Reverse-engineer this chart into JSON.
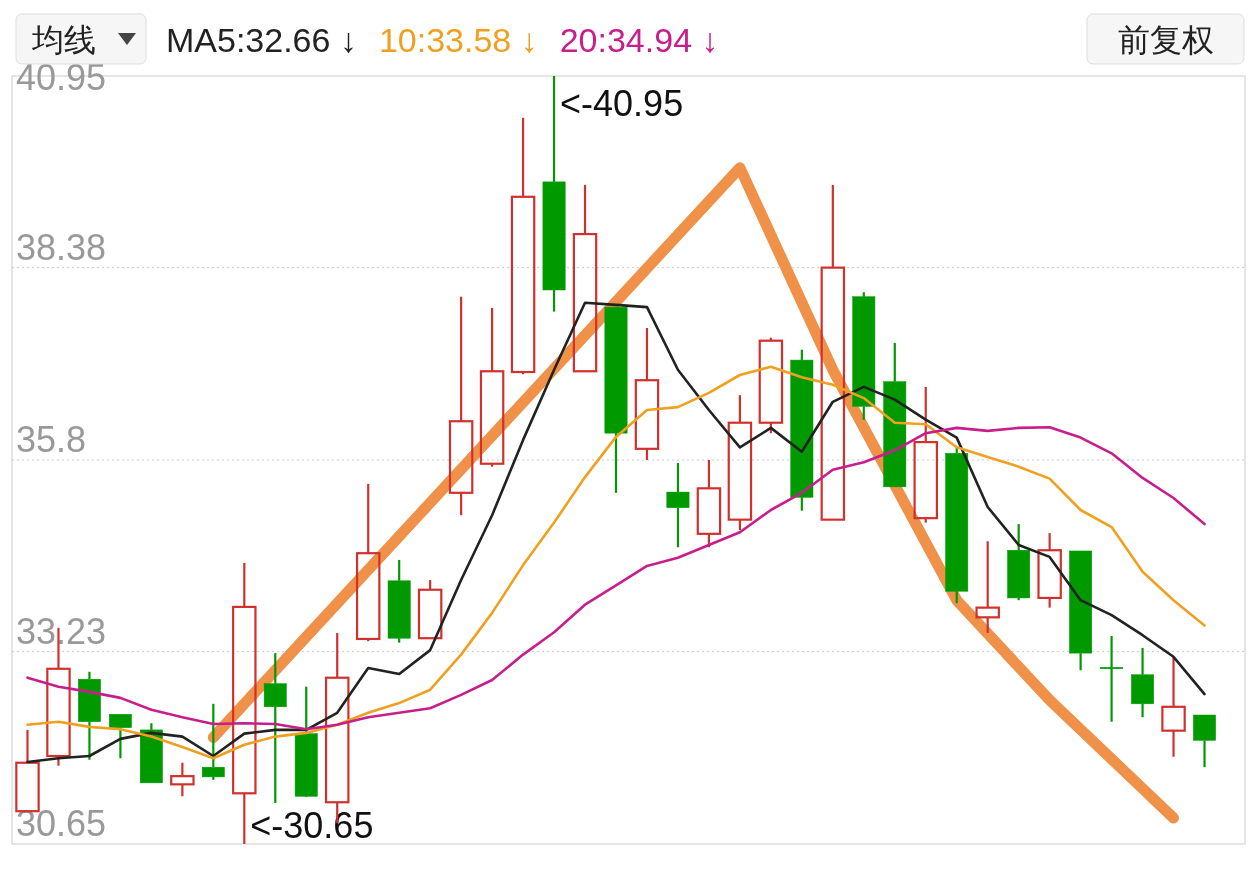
{
  "chart_data": {
    "type": "candlestick",
    "legend_title": "均线",
    "legend": "top",
    "grid": "y",
    "tick_labels": "y",
    "annotations": [
      "前复权",
      "<-40.95",
      "<-30.65"
    ],
    "ylim": [
      30.65,
      40.95
    ],
    "yticks": [
      30.65,
      33.23,
      35.8,
      38.38,
      40.95
    ],
    "categories": [
      null,
      null,
      null,
      null,
      null,
      null,
      null,
      null,
      null,
      null,
      null,
      null,
      null,
      null,
      null,
      null,
      null,
      null,
      null,
      null,
      null,
      null,
      null,
      null,
      null,
      null,
      null,
      null,
      null,
      null,
      null,
      null,
      null,
      null,
      null,
      null,
      null,
      null,
      null
    ],
    "colors": [
      "#d0312d",
      "#d0312d",
      "#009a00",
      "#009a00",
      "#009a00",
      "#d0312d",
      "#009a00",
      "#d0312d",
      "#009a00",
      "#009a00",
      "#d0312d",
      "#d0312d",
      "#009a00",
      "#d0312d",
      "#d0312d",
      "#d0312d",
      "#d0312d",
      "#009a00",
      "#d0312d",
      "#009a00",
      "#d0312d",
      "#009a00",
      "#d0312d",
      "#d0312d",
      "#d0312d",
      "#009a00",
      "#d0312d",
      "#009a00",
      "#009a00",
      "#d0312d",
      "#009a00",
      "#d0312d",
      "#009a00",
      "#d0312d",
      "#009a00",
      "#009a00",
      "#009a00",
      "#d0312d",
      "#009a00"
    ],
    "ohlc": [
      [
        31.09,
        32.18,
        31.09,
        31.74
      ],
      [
        31.83,
        33.55,
        31.7,
        33.0
      ],
      [
        32.86,
        32.96,
        31.78,
        32.29
      ],
      [
        32.39,
        32.39,
        31.8,
        32.21
      ],
      [
        32.18,
        32.27,
        31.47,
        31.47
      ],
      [
        31.45,
        31.74,
        31.29,
        31.56
      ],
      [
        31.68,
        32.53,
        31.51,
        31.55
      ],
      [
        31.33,
        34.42,
        30.65,
        33.83
      ],
      [
        32.8,
        33.21,
        31.2,
        32.49
      ],
      [
        32.13,
        32.76,
        31.28,
        31.29
      ],
      [
        31.21,
        33.48,
        30.93,
        32.88
      ],
      [
        33.4,
        35.48,
        33.37,
        34.55
      ],
      [
        34.18,
        34.46,
        33.35,
        33.41
      ],
      [
        33.41,
        34.19,
        33.41,
        34.06
      ],
      [
        35.36,
        37.99,
        35.06,
        36.32
      ],
      [
        35.75,
        37.84,
        35.71,
        36.99
      ],
      [
        36.98,
        40.39,
        36.95,
        39.33
      ],
      [
        39.53,
        40.95,
        37.79,
        38.08
      ],
      [
        36.99,
        39.49,
        36.99,
        38.83
      ],
      [
        37.85,
        37.85,
        35.36,
        36.16
      ],
      [
        35.95,
        37.57,
        35.8,
        36.87
      ],
      [
        35.37,
        35.76,
        34.63,
        35.16
      ],
      [
        34.81,
        35.8,
        34.63,
        35.42
      ],
      [
        35.0,
        36.67,
        34.86,
        36.3
      ],
      [
        36.3,
        37.44,
        36.16,
        37.4
      ],
      [
        37.14,
        37.28,
        35.12,
        35.3
      ],
      [
        35.0,
        39.49,
        35.0,
        38.38
      ],
      [
        37.99,
        38.05,
        36.34,
        36.52
      ],
      [
        36.85,
        37.37,
        35.44,
        35.44
      ],
      [
        35.02,
        36.78,
        34.96,
        36.04
      ],
      [
        35.89,
        35.97,
        33.88,
        34.04
      ],
      [
        33.69,
        34.71,
        33.48,
        33.82
      ],
      [
        34.59,
        34.94,
        33.92,
        33.95
      ],
      [
        33.95,
        34.82,
        33.82,
        34.59
      ],
      [
        34.58,
        34.58,
        32.98,
        33.21
      ],
      [
        33.02,
        33.44,
        32.29,
        33.01
      ],
      [
        32.92,
        33.28,
        32.35,
        32.53
      ],
      [
        32.17,
        33.16,
        31.82,
        32.49
      ],
      [
        32.38,
        32.38,
        31.68,
        32.04
      ]
    ],
    "series": [
      {
        "type": "line",
        "name": "MA5:32.66 ↓",
        "color": "#222222",
        "values": [
          31.75,
          31.8,
          31.83,
          32.06,
          32.14,
          32.09,
          31.83,
          32.13,
          32.18,
          32.18,
          32.41,
          33.01,
          32.93,
          33.25,
          34.19,
          35.06,
          36.07,
          37.01,
          37.91,
          37.88,
          37.85,
          37.01,
          36.47,
          35.97,
          36.23,
          35.91,
          36.58,
          36.78,
          36.61,
          36.34,
          36.1,
          35.17,
          34.66,
          34.5,
          33.92,
          33.72,
          33.45,
          33.16,
          32.66
        ]
      },
      {
        "type": "line",
        "name": "10:33.58 ↓",
        "color": "#f0a020",
        "values": [
          32.25,
          32.29,
          32.22,
          32.19,
          32.09,
          31.95,
          31.8,
          31.98,
          32.09,
          32.14,
          32.25,
          32.41,
          32.54,
          32.72,
          33.19,
          33.75,
          34.39,
          34.96,
          35.57,
          36.11,
          36.47,
          36.51,
          36.7,
          36.94,
          37.05,
          36.91,
          36.81,
          36.63,
          36.3,
          36.28,
          35.97,
          35.84,
          35.71,
          35.55,
          35.13,
          34.9,
          34.3,
          33.92,
          33.58
        ]
      },
      {
        "type": "line",
        "name": "20:34.94 ↓",
        "color": "#c81e8c",
        "values": [
          32.88,
          32.76,
          32.69,
          32.61,
          32.45,
          32.35,
          32.26,
          32.27,
          32.26,
          32.19,
          32.25,
          32.35,
          32.41,
          32.47,
          32.65,
          32.85,
          33.19,
          33.49,
          33.86,
          34.12,
          34.38,
          34.49,
          34.66,
          34.83,
          35.13,
          35.36,
          35.67,
          35.77,
          35.93,
          36.16,
          36.23,
          36.19,
          36.23,
          36.24,
          36.1,
          35.89,
          35.56,
          35.29,
          34.94
        ]
      },
      {
        "type": "line",
        "color": "#f0914a",
        "values": [
          null,
          null,
          null,
          null,
          null,
          null,
          32.08,
          null,
          null,
          null,
          null,
          null,
          null,
          null,
          null,
          null,
          null,
          null,
          null,
          null,
          null,
          null,
          null,
          39.72,
          null,
          null,
          37.01,
          null,
          null,
          null,
          33.92,
          null,
          null,
          32.58,
          null,
          null,
          null,
          31.0,
          null
        ]
      }
    ]
  }
}
